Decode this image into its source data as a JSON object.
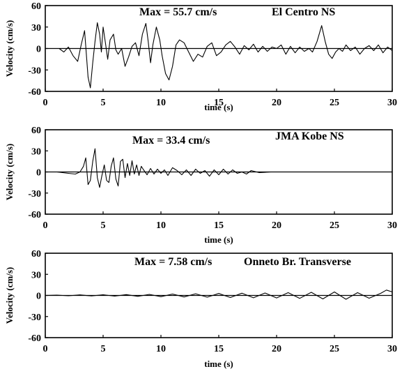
{
  "chart_data": [
    {
      "type": "line",
      "xlabel": "time (s)",
      "ylabel": "Velocity (cm/s)",
      "xlim": [
        0,
        30
      ],
      "ylim": [
        -60,
        60
      ],
      "xticks": [
        "0",
        "5",
        "10",
        "15",
        "20",
        "25",
        "30"
      ],
      "yticks": [
        "60",
        "30",
        "0",
        "-30",
        "-60"
      ],
      "annotations": [
        "Max = 55.7 cm/s",
        "El Centro NS"
      ],
      "grid": false,
      "series": [
        {
          "x": [
            0,
            0.6,
            1.2,
            1.6,
            2.0,
            2.4,
            2.8,
            3.1,
            3.4,
            3.7,
            3.9,
            4.1,
            4.3,
            4.5,
            4.7,
            4.85,
            5.0,
            5.2,
            5.4,
            5.6,
            5.9,
            6.1,
            6.3,
            6.6,
            6.9,
            7.2,
            7.5,
            7.8,
            8.1,
            8.4,
            8.7,
            8.9,
            9.1,
            9.3,
            9.6,
            9.9,
            10.1,
            10.4,
            10.7,
            11.0,
            11.3,
            11.6,
            12.0,
            12.4,
            12.8,
            13.2,
            13.6,
            14.0,
            14.4,
            14.8,
            15.2,
            15.6,
            16.0,
            16.4,
            16.8,
            17.2,
            17.6,
            18.0,
            18.4,
            18.8,
            19.2,
            19.6,
            20.0,
            20.4,
            20.8,
            21.2,
            21.6,
            22.0,
            22.4,
            22.8,
            23.1,
            23.5,
            23.9,
            24.2,
            24.5,
            24.8,
            25.1,
            25.4,
            25.7,
            26.0,
            26.4,
            26.8,
            27.2,
            27.6,
            28.0,
            28.4,
            28.8,
            29.2,
            29.6,
            30.0
          ],
          "y": [
            0,
            0,
            0,
            -5,
            2,
            -10,
            -18,
            5,
            25,
            -40,
            -55,
            -20,
            10,
            36,
            20,
            -5,
            30,
            8,
            -15,
            12,
            20,
            -2,
            -8,
            0,
            -25,
            -12,
            3,
            8,
            -10,
            20,
            35,
            10,
            -20,
            5,
            30,
            12,
            -10,
            -35,
            -44,
            -25,
            5,
            12,
            8,
            -5,
            -18,
            -8,
            -12,
            3,
            8,
            -10,
            -5,
            5,
            10,
            2,
            -8,
            4,
            -2,
            6,
            -5,
            3,
            -4,
            2,
            0,
            5,
            -8,
            3,
            -6,
            2,
            -4,
            0,
            -5,
            10,
            32,
            10,
            -8,
            -14,
            -5,
            0,
            -4,
            5,
            -3,
            2,
            -8,
            0,
            4,
            -3,
            5,
            -6,
            2,
            -3
          ]
        }
      ]
    },
    {
      "type": "line",
      "xlabel": "time (s)",
      "ylabel": "Velocity (cm/s)",
      "xlim": [
        0,
        30
      ],
      "ylim": [
        -60,
        60
      ],
      "xticks": [
        "0",
        "5",
        "10",
        "15",
        "20",
        "25",
        "30"
      ],
      "yticks": [
        "60",
        "30",
        "0",
        "-30",
        "-60"
      ],
      "annotations": [
        "Max = 33.4 cm/s",
        "JMA Kobe NS"
      ],
      "grid": false,
      "series": [
        {
          "x": [
            0,
            1.0,
            2.0,
            2.6,
            3.0,
            3.3,
            3.5,
            3.7,
            3.9,
            4.1,
            4.3,
            4.5,
            4.7,
            4.9,
            5.1,
            5.3,
            5.5,
            5.7,
            5.9,
            6.1,
            6.3,
            6.5,
            6.7,
            6.9,
            7.1,
            7.3,
            7.5,
            7.7,
            7.9,
            8.1,
            8.3,
            8.5,
            8.8,
            9.1,
            9.4,
            9.7,
            10.0,
            10.3,
            10.6,
            11.0,
            11.4,
            11.8,
            12.2,
            12.6,
            13.0,
            13.4,
            13.8,
            14.2,
            14.6,
            15.0,
            15.4,
            15.8,
            16.2,
            16.6,
            17.0,
            17.4,
            17.8,
            18.5,
            19.5,
            20.5,
            21.5,
            22.5,
            23.5,
            24.5,
            25.5,
            26.5,
            27.5,
            28.5,
            29.5,
            30.0
          ],
          "y": [
            0,
            0,
            -2,
            -3,
            0,
            8,
            20,
            -18,
            -12,
            15,
            33,
            -8,
            -22,
            -5,
            10,
            -12,
            -15,
            8,
            20,
            -10,
            -20,
            15,
            18,
            -8,
            12,
            -5,
            16,
            -3,
            10,
            -5,
            8,
            3,
            -4,
            5,
            -3,
            4,
            -2,
            3,
            -5,
            6,
            2,
            -4,
            3,
            -5,
            4,
            -2,
            2,
            -6,
            3,
            -4,
            4,
            -3,
            3,
            -2,
            0,
            -3,
            2,
            -1,
            0,
            0,
            0,
            0,
            0,
            0,
            0,
            0,
            0,
            0,
            0,
            0
          ]
        }
      ]
    },
    {
      "type": "line",
      "xlabel": "time (s)",
      "ylabel": "Velocity (cm/s)",
      "xlim": [
        0,
        30
      ],
      "ylim": [
        -60,
        60
      ],
      "xticks": [
        "0",
        "5",
        "10",
        "15",
        "20",
        "25",
        "30"
      ],
      "yticks": [
        "60",
        "30",
        "0",
        "-30",
        "-60"
      ],
      "annotations": [
        "Max = 7.58 cm/s",
        "Onneto Br. Transverse"
      ],
      "grid": false,
      "series": [
        {
          "x": [
            0,
            1,
            2,
            3,
            4,
            5,
            6,
            7,
            8,
            9,
            10,
            11,
            12,
            13,
            14,
            15,
            16,
            17,
            18,
            19,
            20,
            21,
            22,
            23,
            24,
            25,
            26,
            27,
            28,
            29,
            29.5,
            30
          ],
          "y": [
            0,
            0.5,
            -0.5,
            0.8,
            -0.7,
            1,
            -1,
            1.2,
            -1.3,
            1.5,
            -1.8,
            2,
            -2.2,
            2.4,
            -2.5,
            2.8,
            -3,
            3.2,
            -3.4,
            3.5,
            -3.6,
            4,
            -4.2,
            4.5,
            -5,
            5,
            -5.5,
            4,
            -4,
            3,
            7.6,
            5
          ]
        }
      ]
    }
  ]
}
